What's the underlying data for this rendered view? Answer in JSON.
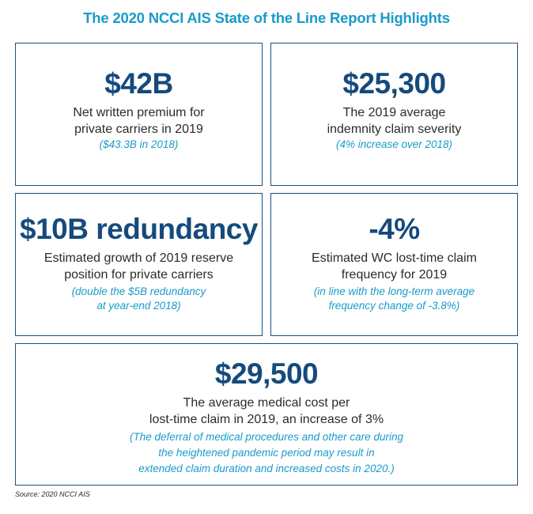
{
  "title": "The 2020 NCCI AIS State of the Line Report Highlights",
  "cards": [
    {
      "stat": "$42B",
      "desc": [
        "Net written premium for",
        "private carriers in 2019"
      ],
      "note": [
        "($43.3B in 2018)"
      ]
    },
    {
      "stat": "$25,300",
      "desc": [
        "The 2019 average",
        "indemnity claim severity"
      ],
      "note": [
        "(4% increase over 2018)"
      ]
    },
    {
      "stat": "$10B redundancy",
      "desc": [
        "Estimated growth of 2019 reserve",
        "position for private carriers"
      ],
      "note": [
        "(double the $5B redundancy",
        "at year-end 2018)"
      ]
    },
    {
      "stat": "-4%",
      "desc": [
        "Estimated WC lost-time claim",
        "frequency for 2019"
      ],
      "note": [
        "(in line with the long-term average",
        "frequency change of -3.8%)"
      ]
    },
    {
      "stat": "$29,500",
      "desc": [
        "The average medical cost per",
        "lost-time claim in 2019, an increase of 3%"
      ],
      "note": [
        "(The deferral of medical procedures and other care during",
        "the heightened pandemic period may result in",
        "extended claim duration and increased costs in 2020.)"
      ]
    }
  ],
  "source": "Source: 2020 NCCI AIS",
  "colors": {
    "title": "#1a9bc9",
    "stat": "#164a7c",
    "border": "#1f4f7b",
    "note": "#1a9bc9",
    "text": "#2b2b2b"
  }
}
